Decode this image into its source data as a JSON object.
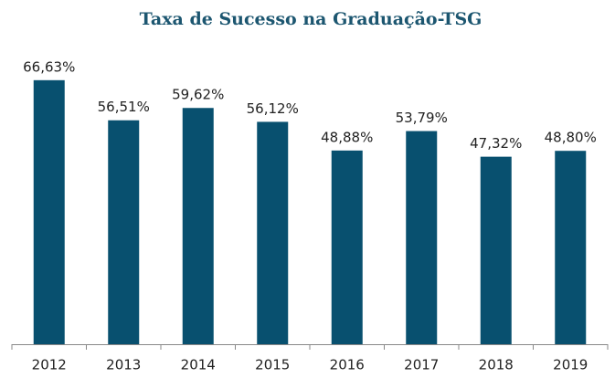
{
  "chart_data": {
    "type": "bar",
    "title": "Taxa de Sucesso na Graduação-TSG",
    "categories": [
      "2012",
      "2013",
      "2014",
      "2015",
      "2016",
      "2017",
      "2018",
      "2019"
    ],
    "values": [
      66.63,
      56.51,
      59.62,
      56.12,
      48.88,
      53.79,
      47.32,
      48.8
    ],
    "value_labels": [
      "66,63%",
      "56,51%",
      "59,62%",
      "56,12%",
      "48,88%",
      "53,79%",
      "47,32%",
      "48,80%"
    ],
    "color": "#08506f"
  }
}
